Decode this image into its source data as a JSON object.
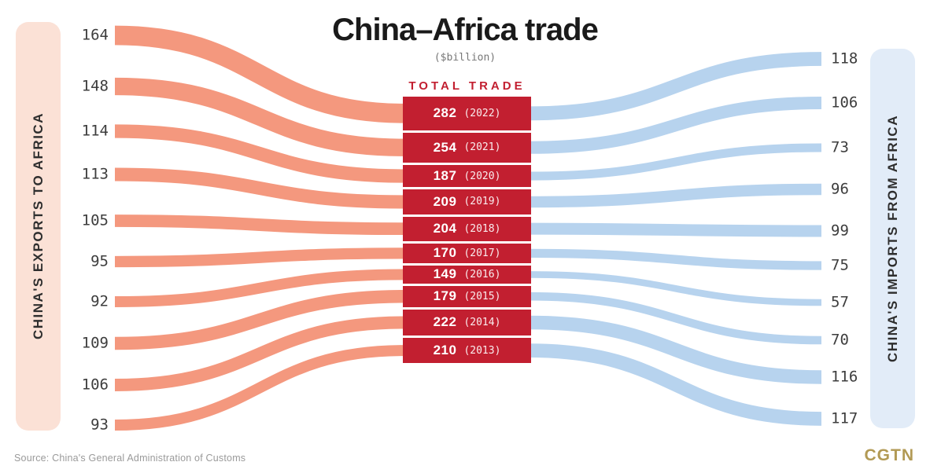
{
  "title": "China–Africa trade",
  "subtitle": "($billion)",
  "center_header": "TOTAL TRADE",
  "left_panel_label": "CHINA'S EXPORTS TO AFRICA",
  "right_panel_label": "CHINA'S IMPORTS FROM AFRICA",
  "footer": {
    "source": "Source: China's General Administration of Customs",
    "logo": "CGTN"
  },
  "colors": {
    "export_ribbon": "#F4987E",
    "export_panel": "#FBE1D6",
    "import_ribbon": "#B7D3EE",
    "import_panel": "#E2ECF8",
    "total_box": "#C21F30",
    "header_red": "#C21F30",
    "title_text": "#1A1A1A",
    "value_text": "#3D3D3D",
    "source_text": "#9A9A9A",
    "logo_gold": "#B29A55"
  },
  "chart_data": {
    "type": "sankey",
    "title": "China–Africa trade",
    "unit": "$billion",
    "left_flow_name": "China's exports to Africa",
    "right_flow_name": "China's imports from Africa",
    "center_node_name": "Total trade",
    "years": [
      "2022",
      "2021",
      "2020",
      "2019",
      "2018",
      "2017",
      "2016",
      "2015",
      "2014",
      "2013"
    ],
    "exports": [
      164,
      148,
      114,
      113,
      105,
      95,
      92,
      109,
      106,
      93
    ],
    "imports": [
      118,
      106,
      73,
      96,
      99,
      75,
      57,
      70,
      116,
      117
    ],
    "totals": [
      282,
      254,
      187,
      209,
      204,
      170,
      149,
      179,
      222,
      210
    ]
  }
}
